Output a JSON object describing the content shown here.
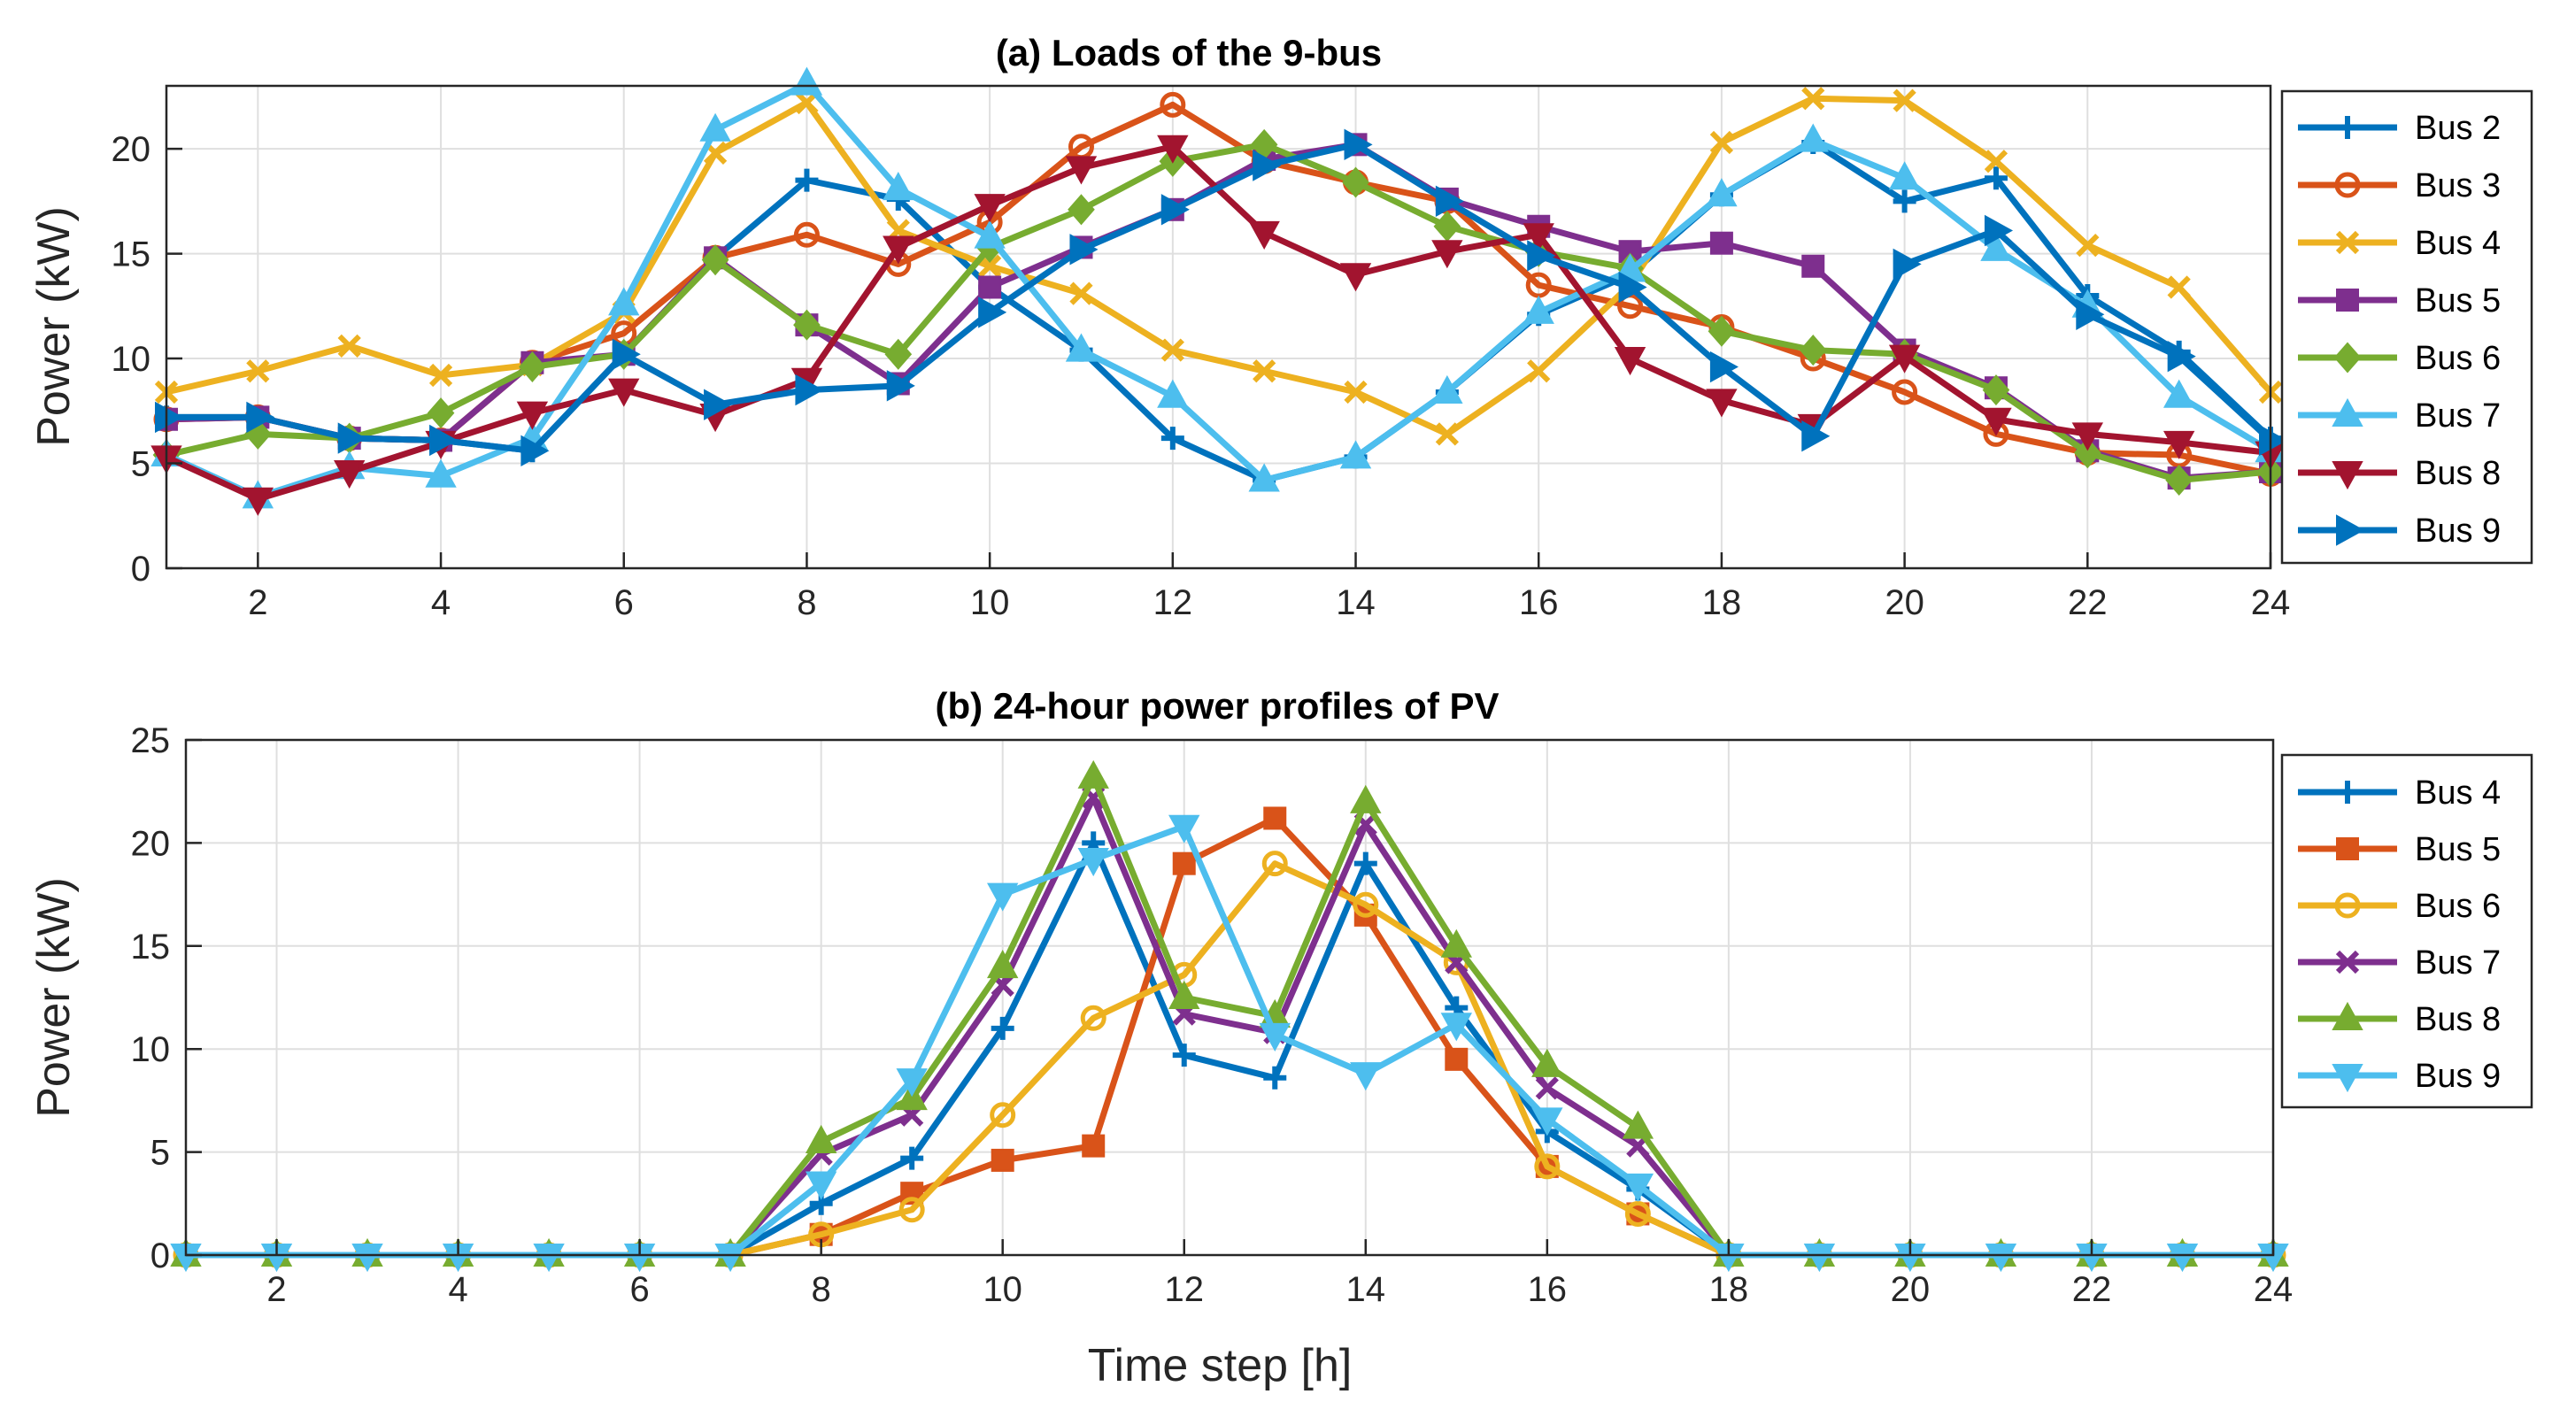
{
  "chart_data": [
    {
      "type": "line",
      "title": "(a) Loads of the 9-bus",
      "xlabel": "",
      "ylabel": "Power (kW)",
      "xlim": [
        1,
        24
      ],
      "ylim": [
        0,
        23
      ],
      "xticks": [
        2,
        4,
        6,
        8,
        10,
        12,
        14,
        16,
        18,
        20,
        22,
        24
      ],
      "yticks": [
        0,
        5,
        10,
        15,
        20
      ],
      "grid": true,
      "legend_position": "outside-right",
      "x": [
        1,
        2,
        3,
        4,
        5,
        6,
        7,
        8,
        9,
        10,
        11,
        12,
        13,
        14,
        15,
        16,
        17,
        18,
        19,
        20,
        21,
        22,
        23,
        24
      ],
      "series": [
        {
          "name": "Bus 2",
          "color": "#0072BD",
          "marker": "plus",
          "values": [
            7.2,
            7.2,
            6.2,
            6.1,
            5.6,
            10.2,
            14.8,
            18.5,
            17.6,
            13.4,
            10.4,
            6.2,
            4.2,
            5.3,
            8.4,
            12.1,
            14.0,
            17.8,
            20.3,
            17.5,
            18.6,
            13.0,
            10.3,
            6.2
          ]
        },
        {
          "name": "Bus 3",
          "color": "#D95319",
          "marker": "circle",
          "values": [
            7.1,
            7.2,
            6.2,
            6.1,
            9.8,
            11.2,
            14.8,
            15.9,
            14.5,
            16.5,
            20.1,
            22.1,
            19.4,
            18.4,
            17.5,
            13.5,
            12.5,
            11.5,
            10.0,
            8.4,
            6.4,
            5.5,
            5.4,
            4.5
          ]
        },
        {
          "name": "Bus 4",
          "color": "#EDB120",
          "marker": "x",
          "values": [
            8.4,
            9.4,
            10.6,
            9.2,
            9.7,
            12.2,
            19.8,
            22.2,
            16.1,
            14.4,
            13.1,
            10.4,
            9.4,
            8.4,
            6.4,
            9.4,
            13.5,
            20.3,
            22.4,
            22.3,
            19.4,
            15.4,
            13.4,
            8.4
          ]
        },
        {
          "name": "Bus 5",
          "color": "#7E2F8E",
          "marker": "square",
          "values": [
            7.1,
            7.2,
            6.2,
            6.1,
            9.8,
            10.2,
            14.8,
            11.6,
            8.8,
            13.4,
            15.3,
            17.1,
            19.5,
            20.2,
            17.6,
            16.3,
            15.1,
            15.5,
            14.4,
            10.4,
            8.6,
            5.6,
            4.3,
            4.6
          ]
        },
        {
          "name": "Bus 6",
          "color": "#77AC30",
          "marker": "diamond",
          "values": [
            5.4,
            6.4,
            6.2,
            7.4,
            9.6,
            10.2,
            14.7,
            11.6,
            10.2,
            15.3,
            17.1,
            19.4,
            20.2,
            18.4,
            16.3,
            15.1,
            14.3,
            11.3,
            10.4,
            10.2,
            8.5,
            5.5,
            4.2,
            4.6
          ]
        },
        {
          "name": "Bus 7",
          "color": "#4DBEEE",
          "marker": "triangle-up",
          "values": [
            5.4,
            3.4,
            4.8,
            4.4,
            6.2,
            12.6,
            20.9,
            23.1,
            18.1,
            15.8,
            10.4,
            8.2,
            4.2,
            5.3,
            8.4,
            12.2,
            14.2,
            17.8,
            20.4,
            18.6,
            15.2,
            12.5,
            8.2,
            5.6
          ]
        },
        {
          "name": "Bus 8",
          "color": "#A2142F",
          "marker": "triangle-down",
          "values": [
            5.3,
            3.3,
            4.6,
            6.0,
            7.4,
            8.5,
            7.3,
            9.0,
            15.3,
            17.3,
            19.1,
            20.1,
            16.0,
            14.0,
            15.1,
            15.9,
            10.0,
            8.0,
            6.8,
            10.1,
            7.1,
            6.4,
            6.0,
            5.5
          ]
        },
        {
          "name": "Bus 9",
          "color": "#0072BD",
          "marker": "triangle-right",
          "values": [
            7.2,
            7.2,
            6.2,
            6.1,
            5.6,
            10.2,
            7.8,
            8.5,
            8.7,
            12.2,
            15.2,
            17.1,
            19.2,
            20.2,
            17.5,
            14.9,
            13.4,
            9.6,
            6.3,
            14.5,
            16.1,
            12.1,
            10.1,
            6.1
          ]
        }
      ]
    },
    {
      "type": "line",
      "title": "(b) 24-hour power profiles of PV",
      "xlabel": "Time step [h]",
      "ylabel": "Power (kW)",
      "xlim": [
        1,
        24
      ],
      "ylim": [
        0,
        25
      ],
      "xticks": [
        2,
        4,
        6,
        8,
        10,
        12,
        14,
        16,
        18,
        20,
        22,
        24
      ],
      "yticks": [
        0,
        5,
        10,
        15,
        20,
        25
      ],
      "grid": true,
      "legend_position": "outside-right",
      "x": [
        1,
        2,
        3,
        4,
        5,
        6,
        7,
        8,
        9,
        10,
        11,
        12,
        13,
        14,
        15,
        16,
        17,
        18,
        19,
        20,
        21,
        22,
        23,
        24
      ],
      "series": [
        {
          "name": "Bus 4",
          "color": "#0072BD",
          "marker": "plus",
          "values": [
            0,
            0,
            0,
            0,
            0,
            0,
            0,
            2.5,
            4.7,
            11.0,
            20.0,
            9.7,
            8.6,
            19.0,
            12.0,
            6.0,
            3.2,
            0,
            0,
            0,
            0,
            0,
            0,
            0
          ]
        },
        {
          "name": "Bus 5",
          "color": "#D95319",
          "marker": "square",
          "values": [
            0,
            0,
            0,
            0,
            0,
            0,
            0,
            1.0,
            3.0,
            4.6,
            5.3,
            19.0,
            21.2,
            16.5,
            9.5,
            4.3,
            2.0,
            0,
            0,
            0,
            0,
            0,
            0,
            0
          ]
        },
        {
          "name": "Bus 6",
          "color": "#EDB120",
          "marker": "circle",
          "values": [
            0,
            0,
            0,
            0,
            0,
            0,
            0,
            1.0,
            2.2,
            6.8,
            11.5,
            13.6,
            19.0,
            17.0,
            14.2,
            4.3,
            2.0,
            0,
            0,
            0,
            0,
            0,
            0,
            0
          ]
        },
        {
          "name": "Bus 7",
          "color": "#7E2F8E",
          "marker": "x",
          "values": [
            0,
            0,
            0,
            0,
            0,
            0,
            0,
            4.9,
            6.8,
            13.1,
            22.2,
            11.7,
            10.8,
            20.9,
            14.2,
            8.1,
            5.3,
            0,
            0,
            0,
            0,
            0,
            0,
            0
          ]
        },
        {
          "name": "Bus 8",
          "color": "#77AC30",
          "marker": "triangle-up",
          "values": [
            0,
            0,
            0,
            0,
            0,
            0,
            0,
            5.5,
            7.6,
            14.0,
            23.2,
            12.5,
            11.6,
            22.0,
            15.0,
            9.2,
            6.2,
            0,
            0,
            0,
            0,
            0,
            0,
            0
          ]
        },
        {
          "name": "Bus 9",
          "color": "#4DBEEE",
          "marker": "triangle-down",
          "values": [
            0,
            0,
            0,
            0,
            0,
            0,
            0,
            3.5,
            8.5,
            17.5,
            19.2,
            20.8,
            10.7,
            8.8,
            11.2,
            6.6,
            3.4,
            0,
            0,
            0,
            0,
            0,
            0,
            0
          ]
        }
      ]
    }
  ]
}
